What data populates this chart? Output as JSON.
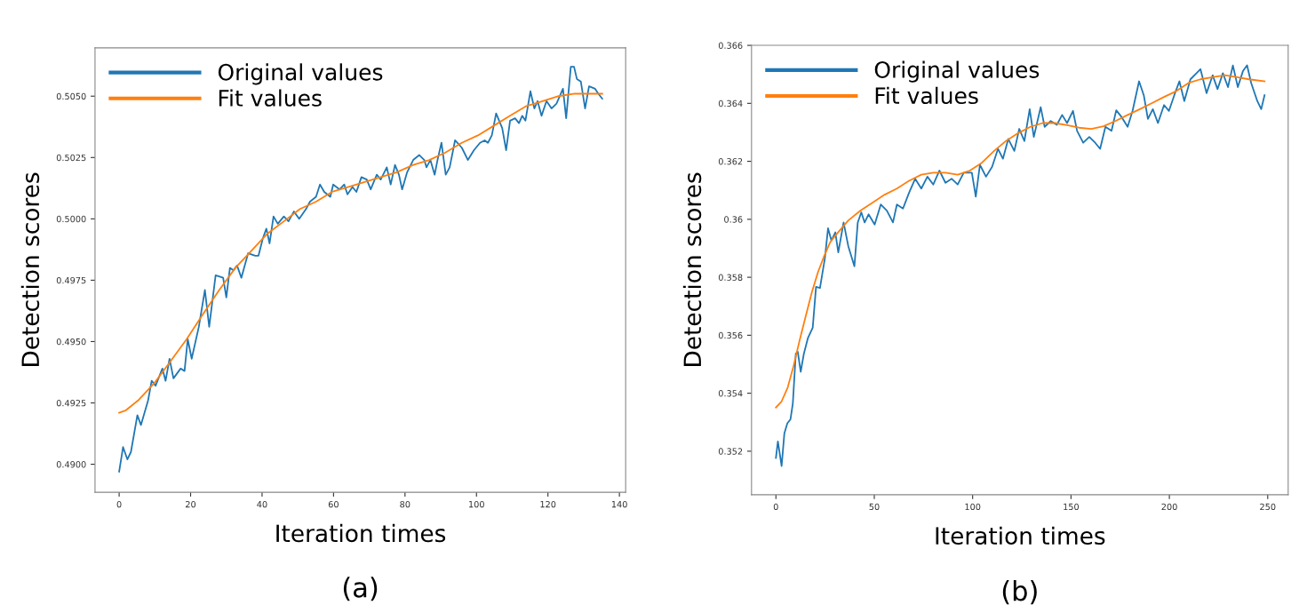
{
  "chart_data": [
    {
      "type": "line",
      "xlabel": "Iteration times",
      "ylabel": "Detection scores",
      "annotations": [
        "(a)"
      ],
      "legend": "top left",
      "grid": false,
      "xlim": [
        -6.75,
        141.75
      ],
      "xticks": [
        0,
        20,
        40,
        60,
        80,
        100,
        120,
        140
      ],
      "ylim": [
        0.48886,
        0.50697
      ],
      "yticks": [
        {
          "value": 0.49,
          "label": "0.4900"
        },
        {
          "value": 0.4925,
          "label": "0.4925"
        },
        {
          "value": 0.495,
          "label": "0.4950"
        },
        {
          "value": 0.4975,
          "label": "0.4975"
        },
        {
          "value": 0.5,
          "label": "0.5000"
        },
        {
          "value": 0.5025,
          "label": "0.5025"
        },
        {
          "value": 0.505,
          "label": "0.5050"
        }
      ],
      "series": [
        {
          "name": "Original values",
          "color": "#1f77b4",
          "x": [
            0,
            1.1,
            2.3,
            3.3,
            5.1,
            6.1,
            8.1,
            9.1,
            10.2,
            12.1,
            13,
            14.1,
            15.2,
            17.2,
            18.3,
            19.2,
            20.3,
            22.3,
            24,
            25.2,
            27,
            29.1,
            30,
            31,
            32,
            33,
            34.2,
            36.1,
            38.1,
            39,
            40.2,
            41.2,
            42.1,
            43.2,
            44.4,
            46.1,
            47.4,
            48.9,
            50.4,
            52.3,
            53.4,
            55.1,
            56.2,
            57.4,
            59.1,
            59.9,
            61.7,
            63,
            63.9,
            65.3,
            66.4,
            67.8,
            69.3,
            70.4,
            72.1,
            73.2,
            74.9,
            76,
            77.2,
            78.3,
            79.2,
            80.6,
            82.3,
            84,
            85.4,
            86,
            87.1,
            88.3,
            89.1,
            90.2,
            91.4,
            92.5,
            94,
            95.9,
            97.6,
            99.3,
            101,
            102.3,
            103.2,
            104.3,
            105.5,
            107.2,
            108.3,
            109.4,
            110.8,
            111.9,
            112.8,
            113.7,
            115.1,
            116.2,
            117.1,
            118.2,
            119.6,
            121,
            122.4,
            124.2,
            125.1,
            126.4,
            127.3,
            128.1,
            129.2,
            130.4,
            131.5,
            133.2,
            134.1,
            135.2
          ],
          "values": [
            0.4897,
            0.4907,
            0.4902,
            0.4905,
            0.492,
            0.4916,
            0.4926,
            0.4934,
            0.4932,
            0.4939,
            0.4934,
            0.4943,
            0.4935,
            0.4939,
            0.4938,
            0.4951,
            0.4943,
            0.4956,
            0.4971,
            0.4956,
            0.4977,
            0.4976,
            0.4968,
            0.498,
            0.4979,
            0.4981,
            0.4976,
            0.4986,
            0.4985,
            0.4985,
            0.4992,
            0.4996,
            0.499,
            0.5001,
            0.4998,
            0.5001,
            0.4999,
            0.5003,
            0.5,
            0.5004,
            0.5007,
            0.5009,
            0.5014,
            0.5011,
            0.5009,
            0.5014,
            0.5012,
            0.5014,
            0.501,
            0.5013,
            0.5011,
            0.5017,
            0.5016,
            0.5012,
            0.5018,
            0.5016,
            0.5021,
            0.5014,
            0.5022,
            0.5018,
            0.5012,
            0.5019,
            0.5024,
            0.5026,
            0.5024,
            0.5021,
            0.5024,
            0.5018,
            0.5024,
            0.5031,
            0.5018,
            0.5021,
            0.5032,
            0.5029,
            0.5024,
            0.5028,
            0.5031,
            0.5032,
            0.5031,
            0.5034,
            0.5043,
            0.5037,
            0.5028,
            0.504,
            0.5041,
            0.5039,
            0.5042,
            0.504,
            0.5052,
            0.5045,
            0.5048,
            0.5042,
            0.5048,
            0.5045,
            0.5047,
            0.5053,
            0.5041,
            0.5062,
            0.5062,
            0.5057,
            0.5056,
            0.5045,
            0.5054,
            0.5053,
            0.5051,
            0.5049
          ]
        },
        {
          "name": "Fit values",
          "color": "#ff7f0e",
          "x": [
            0,
            1.9,
            5.3,
            9.8,
            14.4,
            18.9,
            23.4,
            28,
            32.5,
            37,
            41.5,
            46.1,
            50.6,
            55.1,
            59.6,
            64.2,
            68.7,
            73.2,
            77.7,
            82.3,
            86.8,
            91.3,
            95.9,
            100.4,
            104.9,
            109.4,
            114,
            118.5,
            123,
            127.5,
            132,
            135.2
          ],
          "values": [
            0.4921,
            0.4922,
            0.4926,
            0.4933,
            0.4942,
            0.4951,
            0.4961,
            0.4971,
            0.498,
            0.4987,
            0.4994,
            0.4999,
            0.5004,
            0.5007,
            0.5011,
            0.5013,
            0.5015,
            0.5017,
            0.5019,
            0.5022,
            0.5024,
            0.5027,
            0.5031,
            0.5034,
            0.5038,
            0.5042,
            0.5046,
            0.5048,
            0.505,
            0.5051,
            0.5051,
            0.5051
          ]
        }
      ]
    },
    {
      "type": "line",
      "xlabel": "Iteration times",
      "ylabel": "Detection scores",
      "annotations": [
        "(b)"
      ],
      "legend": "top left",
      "grid": false,
      "xlim": [
        -12.4,
        260.4
      ],
      "xticks": [
        0,
        50,
        100,
        150,
        200,
        250
      ],
      "ylim": [
        0.3505,
        0.366
      ],
      "yticks": [
        0.352,
        0.354,
        0.356,
        0.358,
        0.36,
        0.362,
        0.364,
        0.366
      ],
      "series": [
        {
          "name": "Original values",
          "color": "#1f77b4",
          "x": [
            0,
            1,
            2.9,
            4.3,
            5.8,
            7.4,
            8.6,
            10.1,
            11.1,
            12.6,
            14.2,
            16.3,
            18.7,
            20.4,
            22.4,
            24.9,
            26.5,
            28.2,
            30.2,
            31.7,
            34.4,
            36.8,
            39.9,
            41.6,
            43.4,
            45.1,
            47.1,
            50.2,
            53.3,
            56.4,
            59.5,
            61.5,
            64.6,
            67.7,
            70.8,
            73.9,
            77,
            80,
            83.1,
            86.2,
            89.3,
            92.4,
            95.5,
            99.6,
            101.6,
            103.7,
            106.8,
            109.9,
            112.9,
            115.4,
            118.1,
            121.2,
            123.7,
            126.3,
            129,
            131.1,
            134.6,
            136.6,
            139.7,
            142.8,
            145.5,
            148,
            151,
            153.1,
            156.2,
            159.3,
            162.3,
            164.8,
            167.5,
            170.6,
            173,
            175.7,
            178.8,
            181.3,
            184.6,
            187,
            189.1,
            191.6,
            194.2,
            197.3,
            199.8,
            202.5,
            205.1,
            207.6,
            210.7,
            213.8,
            215.8,
            218.9,
            222,
            224.5,
            227.2,
            229.8,
            232.3,
            234.8,
            237.4,
            239.5,
            241.6,
            244.7,
            246.7,
            248.4
          ],
          "values": [
            0.35177,
            0.35234,
            0.35149,
            0.35262,
            0.35296,
            0.3531,
            0.35365,
            0.35536,
            0.35543,
            0.35474,
            0.35536,
            0.35591,
            0.35626,
            0.35767,
            0.35763,
            0.35866,
            0.35969,
            0.35927,
            0.35955,
            0.35886,
            0.35989,
            0.35907,
            0.35838,
            0.35989,
            0.36024,
            0.35989,
            0.36017,
            0.35982,
            0.36051,
            0.3603,
            0.35989,
            0.36051,
            0.36037,
            0.36092,
            0.3614,
            0.36106,
            0.36147,
            0.3612,
            0.36168,
            0.36126,
            0.3614,
            0.3612,
            0.36161,
            0.36161,
            0.36078,
            0.36188,
            0.36147,
            0.36181,
            0.36243,
            0.36209,
            0.36277,
            0.36236,
            0.36312,
            0.3627,
            0.3638,
            0.36284,
            0.36387,
            0.36319,
            0.36339,
            0.36326,
            0.3636,
            0.36332,
            0.36374,
            0.36305,
            0.36264,
            0.36284,
            0.36264,
            0.36243,
            0.36319,
            0.36305,
            0.36376,
            0.36353,
            0.36319,
            0.36374,
            0.36476,
            0.36428,
            0.36346,
            0.3638,
            0.36332,
            0.36394,
            0.36374,
            0.36428,
            0.36476,
            0.36408,
            0.36483,
            0.36504,
            0.36518,
            0.36435,
            0.36497,
            0.36449,
            0.36504,
            0.36456,
            0.36531,
            0.36456,
            0.36511,
            0.36531,
            0.3647,
            0.36408,
            0.3638,
            0.36428
          ]
        },
        {
          "name": "Fit values",
          "color": "#ff7f0e",
          "x": [
            0,
            2.9,
            6,
            9,
            12.1,
            15.2,
            18.3,
            21.4,
            24.5,
            27.6,
            30.7,
            36.8,
            43,
            49.2,
            55.3,
            61.5,
            67.7,
            73.9,
            80,
            86.2,
            92.4,
            98.6,
            104.7,
            110.9,
            117.1,
            123.3,
            129.4,
            135.6,
            141.8,
            148,
            154.1,
            160.3,
            166.5,
            172.6,
            178.8,
            185,
            191.2,
            197.3,
            203.5,
            209.7,
            215.8,
            222,
            228.2,
            234.4,
            240.5,
            248.4
          ],
          "values": [
            0.35351,
            0.35372,
            0.3542,
            0.35495,
            0.35584,
            0.35667,
            0.35749,
            0.35818,
            0.35873,
            0.35921,
            0.35948,
            0.35996,
            0.3603,
            0.36058,
            0.36085,
            0.36106,
            0.36133,
            0.36154,
            0.36161,
            0.36161,
            0.36154,
            0.36168,
            0.36195,
            0.36236,
            0.36271,
            0.36298,
            0.36319,
            0.36332,
            0.36332,
            0.36325,
            0.36316,
            0.36312,
            0.36321,
            0.36339,
            0.3636,
            0.3638,
            0.36401,
            0.36422,
            0.36442,
            0.3647,
            0.36483,
            0.3649,
            0.36497,
            0.3649,
            0.36483,
            0.36476
          ]
        }
      ]
    }
  ]
}
